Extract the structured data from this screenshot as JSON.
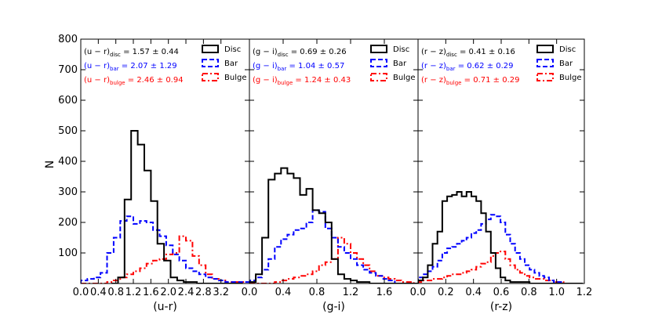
{
  "chart_data": {
    "type": "histogram",
    "ylabel": "N",
    "ylim": [
      0,
      800
    ],
    "yticks": [
      "100",
      "200",
      "300",
      "400",
      "500",
      "600",
      "700",
      "800"
    ],
    "colors": {
      "disc": "#000000",
      "bar": "#0000ff",
      "bulge": "#ff0000"
    },
    "panels": [
      {
        "xlabel": "(u-r)",
        "xlim": [
          0.0,
          3.85
        ],
        "xticks": [
          "0.0",
          "0.4",
          "0.8",
          "1.2",
          "1.6",
          "2.0",
          "2.4",
          "2.8",
          "3.2"
        ],
        "annotations": [
          {
            "pre": "(u − r)",
            "sub": "disc",
            "post": " = 1.57 ± 0.44",
            "color": "#000000"
          },
          {
            "pre": "(u − r)",
            "sub": "bar",
            "post": " = 2.07 ± 1.29",
            "color": "#0000ff"
          },
          {
            "pre": "(u − r)",
            "sub": "bulge",
            "post": " = 2.46 ± 0.94",
            "color": "#ff0000"
          }
        ],
        "legend": [
          "Disc",
          "Bar",
          "Bulge"
        ],
        "series": [
          {
            "name": "Disc",
            "x0": 0.7,
            "bin": 0.15,
            "values": [
              0,
              20,
              275,
              500,
              455,
              370,
              270,
              130,
              75,
              20,
              10,
              5,
              5,
              0,
              0,
              0,
              0,
              0,
              0,
              0
            ]
          },
          {
            "name": "Bar",
            "x0": 0.0,
            "bin": 0.15,
            "values": [
              10,
              15,
              20,
              35,
              100,
              150,
              205,
              220,
              195,
              205,
              200,
              175,
              155,
              125,
              95,
              75,
              50,
              40,
              30,
              20,
              15,
              10,
              5,
              5,
              5,
              5
            ]
          },
          {
            "name": "Bulge",
            "x0": 0.0,
            "bin": 0.15,
            "values": [
              0,
              0,
              0,
              0,
              5,
              10,
              20,
              30,
              40,
              50,
              65,
              75,
              80,
              95,
              100,
              155,
              140,
              90,
              60,
              30,
              15,
              10,
              5,
              5,
              5
            ]
          }
        ]
      },
      {
        "xlabel": "(g-i)",
        "xlim": [
          0.0,
          2.0
        ],
        "xticks": [
          "0.0",
          "0.4",
          "0.8",
          "1.2",
          "1.6"
        ],
        "annotations": [
          {
            "pre": "(g − i)",
            "sub": "disc",
            "post": " = 0.69 ± 0.26",
            "color": "#000000"
          },
          {
            "pre": "(g − i)",
            "sub": "bar",
            "post": " = 1.04 ± 0.57",
            "color": "#0000ff"
          },
          {
            "pre": "(g − i)",
            "sub": "bulge",
            "post": " = 1.24 ± 0.43",
            "color": "#ff0000"
          }
        ],
        "legend": [
          "Disc",
          "Bar",
          "Bulge"
        ],
        "series": [
          {
            "name": "Disc",
            "x0": 0.0,
            "bin": 0.075,
            "values": [
              5,
              30,
              150,
              340,
              360,
              378,
              360,
              345,
              290,
              310,
              240,
              230,
              200,
              80,
              30,
              15,
              10,
              5,
              5,
              0,
              0,
              0,
              0,
              0,
              0,
              0,
              0
            ]
          },
          {
            "name": "Bar",
            "x0": 0.0,
            "bin": 0.075,
            "values": [
              10,
              20,
              45,
              80,
              120,
              145,
              160,
              175,
              180,
              200,
              240,
              235,
              180,
              150,
              120,
              100,
              80,
              60,
              45,
              35,
              25,
              15,
              10
            ]
          },
          {
            "name": "Bulge",
            "x0": 0.0,
            "bin": 0.075,
            "values": [
              0,
              0,
              0,
              0,
              5,
              10,
              15,
              20,
              25,
              30,
              40,
              60,
              70,
              80,
              150,
              130,
              100,
              80,
              60,
              40,
              25,
              20,
              15,
              10,
              5,
              5
            ]
          }
        ]
      },
      {
        "xlabel": "(r-z)",
        "xlim": [
          0.0,
          1.2
        ],
        "xticks": [
          "0.0",
          "0.2",
          "0.4",
          "0.6",
          "0.8",
          "1.0",
          "1.2"
        ],
        "annotations": [
          {
            "pre": "(r − z)",
            "sub": "disc",
            "post": " = 0.41 ± 0.16",
            "color": "#000000"
          },
          {
            "pre": "(r − z)",
            "sub": "bar",
            "post": " = 0.62 ± 0.29",
            "color": "#0000ff"
          },
          {
            "pre": "(r − z)",
            "sub": "bulge",
            "post": " = 0.71 ± 0.29",
            "color": "#ff0000"
          }
        ],
        "legend": [
          "Disc",
          "Bar",
          "Bulge"
        ],
        "series": [
          {
            "name": "Disc",
            "x0": 0.0,
            "bin": 0.035,
            "values": [
              10,
              20,
              60,
              130,
              170,
              270,
              285,
              290,
              300,
              285,
              300,
              285,
              270,
              230,
              170,
              100,
              50,
              20,
              10,
              5,
              5,
              5,
              5,
              0,
              0,
              0,
              0,
              0,
              0,
              0,
              0,
              0,
              0,
              0
            ]
          },
          {
            "name": "Bar",
            "x0": 0.0,
            "bin": 0.035,
            "values": [
              20,
              30,
              40,
              55,
              75,
              100,
              115,
              120,
              130,
              140,
              150,
              165,
              175,
              195,
              210,
              225,
              220,
              200,
              160,
              130,
              100,
              80,
              60,
              45,
              35,
              25,
              20,
              10,
              5,
              5
            ]
          },
          {
            "name": "Bulge",
            "x0": 0.0,
            "bin": 0.035,
            "values": [
              5,
              10,
              10,
              15,
              15,
              20,
              25,
              30,
              30,
              35,
              40,
              45,
              55,
              65,
              70,
              90,
              100,
              105,
              80,
              60,
              45,
              35,
              25,
              20,
              15,
              15,
              10,
              10,
              5,
              5
            ]
          }
        ]
      }
    ]
  }
}
